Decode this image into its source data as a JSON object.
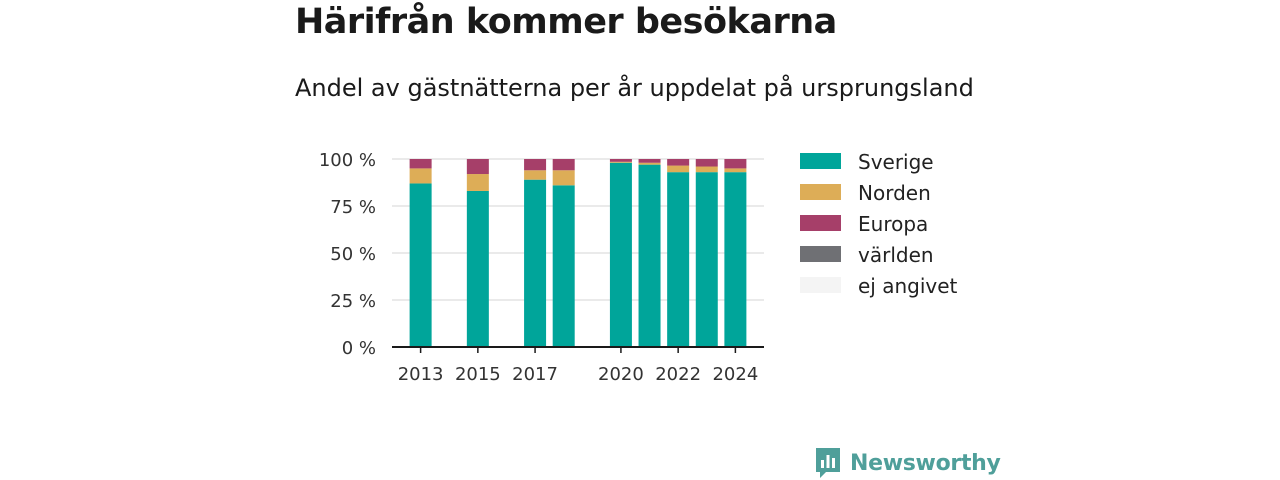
{
  "header": {
    "title": "Härifrån kommer besökarna",
    "subtitle": "Andel av gästnätterna per år uppdelat på ursprungsland"
  },
  "brand": {
    "name": "Newsworthy",
    "color": "#4f9f9a"
  },
  "chart_data": {
    "type": "bar",
    "stacked": true,
    "x": [
      2013,
      2015,
      2017,
      2018,
      2020,
      2021,
      2022,
      2023,
      2024
    ],
    "x_ticks": [
      "2013",
      "2015",
      "2017",
      "2020",
      "2022",
      "2024"
    ],
    "y_ticks": [
      "0 %",
      "25 %",
      "50 %",
      "75 %",
      "100 %"
    ],
    "ylim": [
      0,
      100
    ],
    "grid": true,
    "legend_position": "right",
    "series": [
      {
        "name": "Sverige",
        "color": "#00a59a",
        "values": [
          87,
          83,
          89,
          86,
          98,
          97,
          93,
          93,
          93
        ]
      },
      {
        "name": "Norden",
        "color": "#ddad57",
        "values": [
          8,
          9,
          5,
          8,
          0.5,
          1,
          3.5,
          3,
          2
        ]
      },
      {
        "name": "Europa",
        "color": "#a63f69",
        "values": [
          5,
          8,
          6,
          6,
          1.5,
          2,
          3.5,
          4,
          5
        ]
      },
      {
        "name": "världen",
        "color": "#6f7074",
        "values": [
          0,
          0,
          0,
          0,
          0,
          0,
          0,
          0,
          0
        ]
      },
      {
        "name": "ej angivet",
        "color": "#f4f4f4",
        "values": [
          0,
          0,
          0,
          0,
          0,
          0,
          0,
          0,
          0
        ]
      }
    ]
  }
}
